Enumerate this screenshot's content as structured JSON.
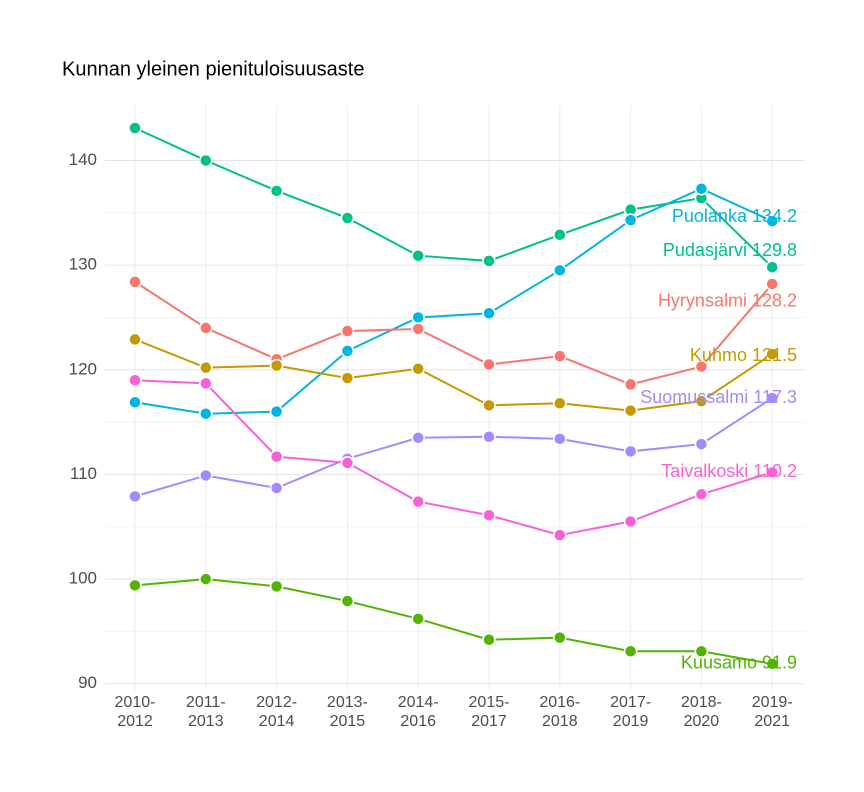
{
  "chart_data": {
    "type": "line",
    "title": "Kunnan yleinen pienituloisuusaste",
    "categories": [
      "2010-2012",
      "2011-2013",
      "2012-2014",
      "2013-2015",
      "2014-2016",
      "2015-2017",
      "2016-2018",
      "2017-2019",
      "2018-2020",
      "2019-2021"
    ],
    "ylim": [
      89.4,
      145.3
    ],
    "yticks": [
      90,
      100,
      110,
      120,
      130,
      140
    ],
    "grid": true,
    "series": [
      {
        "name": "Pudasjärvi",
        "color": "#00c08b",
        "values": [
          143.1,
          140.0,
          137.1,
          134.5,
          130.9,
          130.4,
          132.9,
          135.3,
          136.4,
          129.8
        ],
        "end_label": "Pudasjärvi 129.8"
      },
      {
        "name": "Puolanka",
        "color": "#00b4e3",
        "values": [
          116.9,
          115.8,
          116.0,
          121.8,
          125.0,
          125.4,
          129.5,
          134.3,
          137.3,
          134.2
        ],
        "end_label": "Puolanka 134.2"
      },
      {
        "name": "Hyrynsalmi",
        "color": "#f8766d",
        "values": [
          128.4,
          124.0,
          121.0,
          123.7,
          123.9,
          120.5,
          121.3,
          118.6,
          120.3,
          128.2
        ],
        "end_label": "Hyrynsalmi 128.2"
      },
      {
        "name": "Kuhmo",
        "color": "#c49a00",
        "values": [
          122.9,
          120.2,
          120.4,
          119.2,
          120.1,
          116.6,
          116.8,
          116.1,
          117.0,
          121.5
        ],
        "end_label": "Kuhmo 121.5"
      },
      {
        "name": "Suomussalmi",
        "color": "#a58aff",
        "values": [
          107.9,
          109.9,
          108.7,
          111.5,
          113.5,
          113.6,
          113.4,
          112.2,
          112.9,
          117.3
        ],
        "end_label": "Suomussalmi 117.3"
      },
      {
        "name": "Taivalkoski",
        "color": "#fb61d7",
        "values": [
          119.0,
          118.7,
          111.7,
          111.1,
          107.4,
          106.1,
          104.2,
          105.5,
          108.1,
          110.2
        ],
        "end_label": "Taivalkoski 110.2"
      },
      {
        "name": "Kuusamo",
        "color": "#53b400",
        "values": [
          99.4,
          100.0,
          99.3,
          97.9,
          96.2,
          94.2,
          94.4,
          93.1,
          93.1,
          91.9
        ],
        "end_label": "Kuusamo 91.9"
      }
    ]
  }
}
